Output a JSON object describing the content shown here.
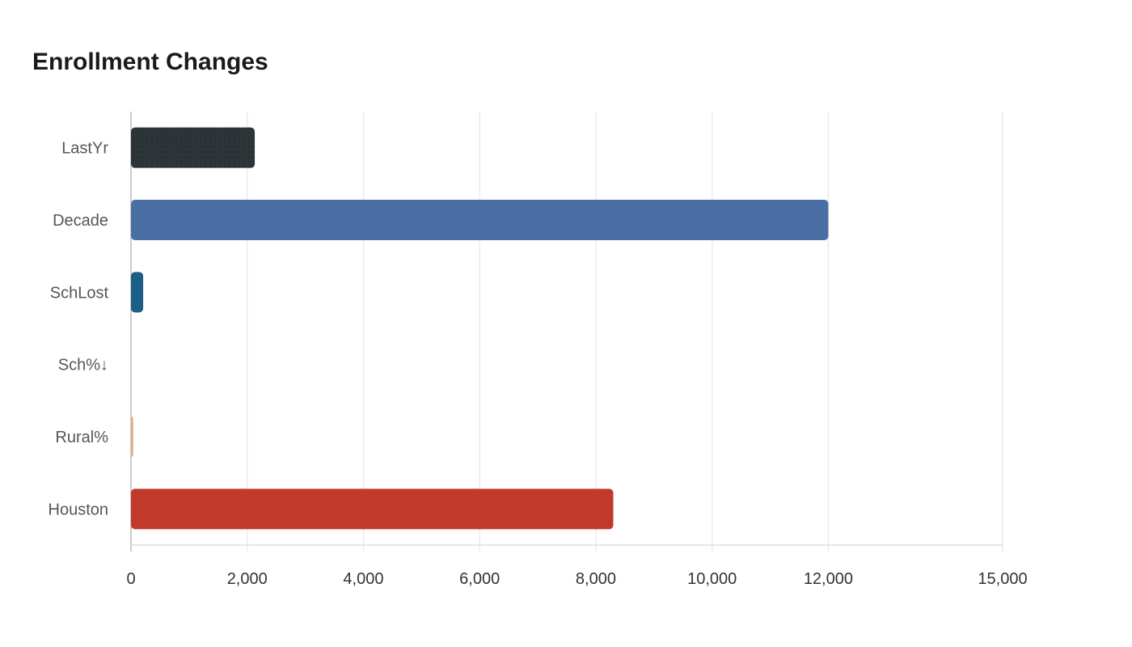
{
  "chart_data": {
    "type": "bar",
    "orientation": "horizontal",
    "title": "Enrollment Changes",
    "categories": [
      "LastYr",
      "Decade",
      "SchLost",
      "Sch%↓",
      "Rural%",
      "Houston"
    ],
    "values": [
      2130,
      12000,
      210,
      5,
      40,
      8300
    ],
    "colors": [
      "#2e3539",
      "#4a6fa5",
      "#1b5e86",
      "#c9d6e3",
      "#e0ae8c",
      "#c0392b"
    ],
    "xlim": [
      0,
      15000
    ],
    "xticks": [
      0,
      2000,
      4000,
      6000,
      8000,
      10000,
      12000,
      15000
    ],
    "xtick_labels": [
      "0",
      "2,000",
      "4,000",
      "6,000",
      "8,000",
      "10,000",
      "12,000",
      "15,000"
    ],
    "grid": true,
    "legend": "none"
  }
}
